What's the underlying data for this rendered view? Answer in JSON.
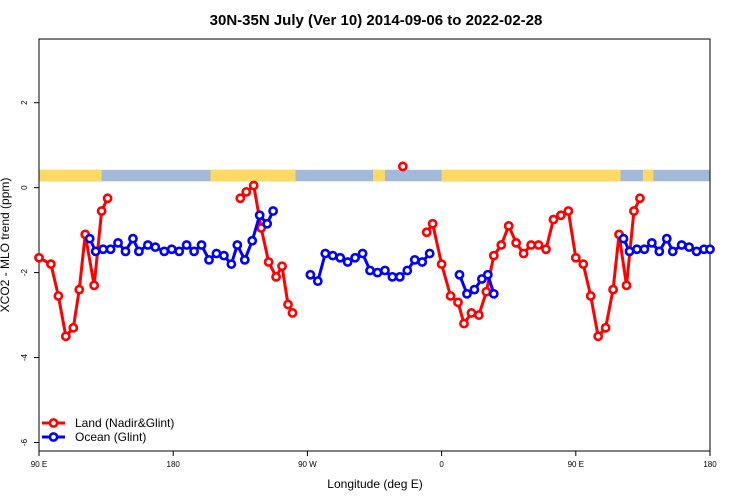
{
  "chart_data": {
    "type": "line",
    "title": "30N-35N July (Ver 10)   2014-09-06 to 2022-02-28",
    "xlabel": "Longitude (deg E)",
    "ylabel": "XCO2 - MLO trend (ppm)",
    "x_ticks": [
      {
        "value": 90,
        "label": "90 E"
      },
      {
        "value": 180,
        "label": "180"
      },
      {
        "value": 270,
        "label": "90 W"
      },
      {
        "value": 360,
        "label": "0"
      },
      {
        "value": 450,
        "label": "90 E"
      },
      {
        "value": 540,
        "label": "180"
      }
    ],
    "y_ticks": [
      {
        "value": 2,
        "label": "2"
      },
      {
        "value": 0,
        "label": "0"
      },
      {
        "value": -2,
        "label": "-2"
      },
      {
        "value": -4,
        "label": "-4"
      },
      {
        "value": -6,
        "label": "-6"
      }
    ],
    "xlim": [
      90,
      540
    ],
    "ylim": [
      -6.2,
      3.5
    ],
    "grid": false,
    "legend_position": "bottom-left",
    "colors": {
      "land": "#ff0000",
      "ocean": "#0000ff",
      "land_strip": "#ffd966",
      "ocean_strip": "#a4b8d8"
    },
    "surface_strip": {
      "y_range": [
        0.15,
        0.42
      ],
      "land_segments": [
        [
          90,
          132
        ],
        [
          205,
          250
        ],
        [
          215,
          262
        ],
        [
          314,
          322
        ],
        [
          360,
          395
        ],
        [
          394,
          480
        ],
        [
          495,
          502
        ]
      ]
    },
    "series": [
      {
        "name": "Land (Nadir&Glint)",
        "color": "#ff0000",
        "segments": [
          [
            [
              90,
              -1.65
            ],
            [
              98,
              -1.8
            ],
            [
              103,
              -2.55
            ],
            [
              108,
              -3.5
            ],
            [
              113,
              -3.3
            ],
            [
              117,
              -2.4
            ],
            [
              121,
              -1.1
            ],
            [
              127,
              -2.3
            ],
            [
              132,
              -0.55
            ],
            [
              136,
              -0.25
            ]
          ],
          [
            [
              225,
              -0.25
            ],
            [
              229,
              -0.1
            ],
            [
              234,
              0.05
            ],
            [
              239,
              -0.95
            ],
            [
              244,
              -1.75
            ],
            [
              249,
              -2.1
            ],
            [
              253,
              -1.85
            ],
            [
              257,
              -2.75
            ],
            [
              260,
              -2.95
            ]
          ],
          [
            [
              334,
              0.5
            ]
          ],
          [
            [
              350,
              -1.05
            ],
            [
              354,
              -0.85
            ],
            [
              360,
              -1.8
            ],
            [
              366,
              -2.55
            ],
            [
              371,
              -2.7
            ],
            [
              375,
              -3.2
            ],
            [
              380,
              -2.95
            ],
            [
              385,
              -3.0
            ],
            [
              390,
              -2.45
            ],
            [
              395,
              -1.6
            ],
            [
              400,
              -1.35
            ],
            [
              405,
              -0.9
            ],
            [
              410,
              -1.3
            ],
            [
              415,
              -1.55
            ],
            [
              420,
              -1.35
            ],
            [
              425,
              -1.35
            ],
            [
              430,
              -1.45
            ],
            [
              435,
              -0.75
            ],
            [
              440,
              -0.65
            ],
            [
              445,
              -0.55
            ],
            [
              450,
              -1.65
            ],
            [
              455,
              -1.8
            ],
            [
              460,
              -2.55
            ],
            [
              465,
              -3.5
            ],
            [
              470,
              -3.3
            ],
            [
              475,
              -2.4
            ],
            [
              479,
              -1.1
            ],
            [
              484,
              -2.3
            ],
            [
              489,
              -0.55
            ],
            [
              493,
              -0.25
            ]
          ]
        ]
      },
      {
        "name": "Ocean (Glint)",
        "color": "#0000ff",
        "segments": [
          [
            [
              124,
              -1.2
            ],
            [
              128,
              -1.5
            ],
            [
              133,
              -1.45
            ],
            [
              138,
              -1.45
            ],
            [
              143,
              -1.3
            ],
            [
              148,
              -1.5
            ],
            [
              153,
              -1.2
            ],
            [
              157,
              -1.5
            ],
            [
              163,
              -1.35
            ],
            [
              168,
              -1.4
            ],
            [
              174,
              -1.5
            ],
            [
              179,
              -1.45
            ],
            [
              184,
              -1.5
            ],
            [
              189,
              -1.35
            ],
            [
              194,
              -1.5
            ],
            [
              199,
              -1.35
            ],
            [
              204,
              -1.7
            ],
            [
              209,
              -1.55
            ],
            [
              214,
              -1.6
            ],
            [
              219,
              -1.8
            ],
            [
              223,
              -1.35
            ],
            [
              228,
              -1.7
            ],
            [
              233,
              -1.25
            ],
            [
              238,
              -0.65
            ],
            [
              243,
              -0.85
            ],
            [
              247,
              -0.55
            ]
          ],
          [
            [
              272,
              -2.05
            ],
            [
              277,
              -2.2
            ],
            [
              282,
              -1.55
            ],
            [
              287,
              -1.6
            ],
            [
              292,
              -1.65
            ],
            [
              297,
              -1.75
            ],
            [
              302,
              -1.65
            ],
            [
              307,
              -1.55
            ],
            [
              312,
              -1.95
            ],
            [
              317,
              -2.0
            ],
            [
              322,
              -1.95
            ],
            [
              327,
              -2.1
            ],
            [
              332,
              -2.1
            ],
            [
              337,
              -1.95
            ],
            [
              342,
              -1.7
            ],
            [
              347,
              -1.75
            ],
            [
              352,
              -1.55
            ]
          ],
          [
            [
              372,
              -2.05
            ],
            [
              377,
              -2.5
            ],
            [
              382,
              -2.4
            ],
            [
              387,
              -2.15
            ],
            [
              391,
              -2.05
            ],
            [
              395,
              -2.5
            ]
          ],
          [
            [
              482,
              -1.2
            ],
            [
              486,
              -1.5
            ],
            [
              491,
              -1.45
            ],
            [
              496,
              -1.45
            ],
            [
              501,
              -1.3
            ],
            [
              506,
              -1.5
            ],
            [
              511,
              -1.2
            ],
            [
              515,
              -1.5
            ],
            [
              521,
              -1.35
            ],
            [
              526,
              -1.4
            ],
            [
              531,
              -1.5
            ],
            [
              536,
              -1.45
            ],
            [
              540,
              -1.45
            ]
          ]
        ]
      }
    ]
  }
}
